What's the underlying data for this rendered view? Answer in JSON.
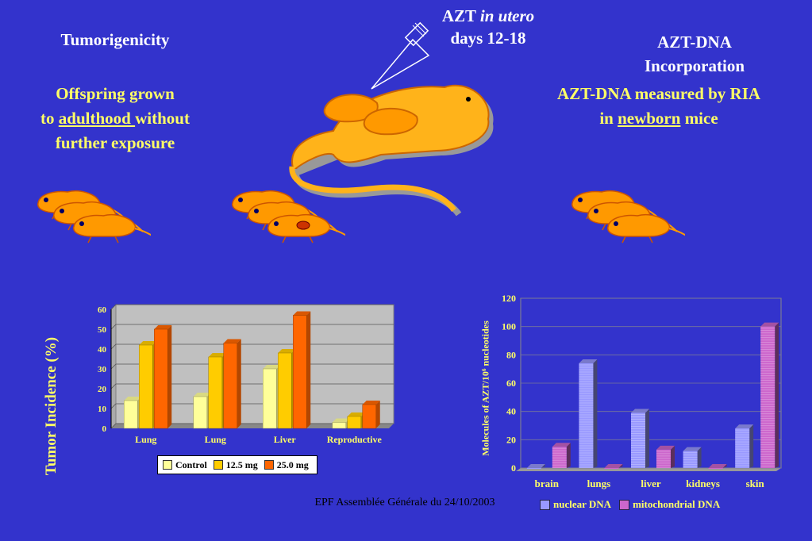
{
  "headings": {
    "tumorigenicity": "Tumorigenicity",
    "azt_prefix": "AZT ",
    "azt_italic": "in utero",
    "azt_days": "days 12-18",
    "azt_dna_line1": "AZT-DNA",
    "azt_dna_line2": "Incorporation",
    "offspring_line1": "Offspring grown",
    "offspring_to": "to ",
    "offspring_underlined": "adulthood ",
    "offspring_without": "without",
    "offspring_line3": "further exposure",
    "ria_line1": "AZT-DNA measured by RIA",
    "ria_in": "in ",
    "ria_underlined": "newborn",
    "ria_mice": " mice"
  },
  "footer": "EPF Assemblée Générale du 24/10/2003",
  "colors": {
    "background": "#3333cc",
    "control": "#ffff99",
    "mg12_5": "#ffcc00",
    "mg25": "#ff6600",
    "nuclear": "#9999ff",
    "mitochondrial": "#cc66cc",
    "mouse": "#ff9900"
  },
  "chart_data": [
    {
      "type": "bar",
      "ylabel": "Tumor Incidence (%)",
      "ylim": [
        0,
        60
      ],
      "yticks": [
        "0",
        "10",
        "20",
        "30",
        "40",
        "50",
        "60"
      ],
      "categories": [
        "Lung",
        "Lung",
        "Liver",
        "Reproductive"
      ],
      "series": [
        {
          "name": "Control",
          "values": [
            14,
            16,
            30,
            3
          ]
        },
        {
          "name": "12.5 mg",
          "values": [
            42,
            36,
            38,
            6
          ]
        },
        {
          "name": "25.0 mg",
          "values": [
            50,
            43,
            57,
            12
          ]
        }
      ],
      "legend": "bottom",
      "grid": true
    },
    {
      "type": "bar",
      "ylabel": "Molecules of AZT/10⁶ nucleotides",
      "ylim": [
        0,
        120
      ],
      "yticks": [
        "0",
        "20",
        "40",
        "60",
        "80",
        "100",
        "120"
      ],
      "categories": [
        "brain",
        "lungs",
        "liver",
        "kidneys",
        "skin"
      ],
      "series": [
        {
          "name": "nuclear DNA",
          "values": [
            0,
            74,
            39,
            12,
            28
          ]
        },
        {
          "name": "mitochondrial DNA",
          "values": [
            15,
            0,
            13,
            0,
            100
          ]
        }
      ],
      "legend": "bottom",
      "grid": true
    }
  ]
}
